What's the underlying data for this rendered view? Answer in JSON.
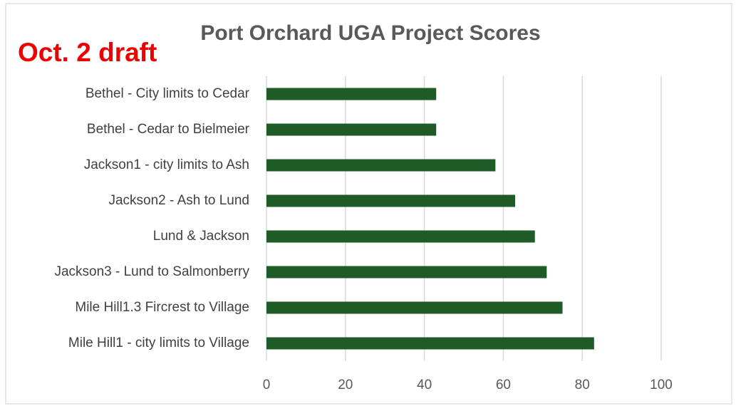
{
  "chart_data": {
    "type": "barh",
    "title": "Port Orchard UGA Project Scores",
    "annotation": "Oct. 2 draft",
    "categories": [
      "Bethel - City limits to Cedar",
      "Bethel - Cedar to Bielmeier",
      "Jackson1 - city limits to Ash",
      "Jackson2 - Ash to Lund",
      "Lund & Jackson",
      "Jackson3 - Lund to Salmonberry",
      "Mile Hill1.3 Fircrest to Village",
      "Mile Hill1  - city limits to Village"
    ],
    "values": [
      43,
      43,
      58,
      63,
      68,
      71,
      75,
      83
    ],
    "color": "#1e5b26",
    "xlim": [
      0,
      100
    ],
    "xticks": [
      0,
      20,
      40,
      60,
      80,
      100
    ],
    "grid": true
  }
}
